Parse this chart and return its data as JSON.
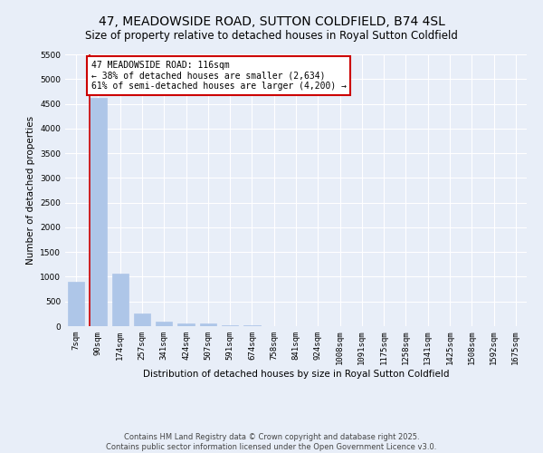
{
  "title": "47, MEADOWSIDE ROAD, SUTTON COLDFIELD, B74 4SL",
  "subtitle": "Size of property relative to detached houses in Royal Sutton Coldfield",
  "xlabel": "Distribution of detached houses by size in Royal Sutton Coldfield",
  "ylabel": "Number of detached properties",
  "bin_labels": [
    "7sqm",
    "90sqm",
    "174sqm",
    "257sqm",
    "341sqm",
    "424sqm",
    "507sqm",
    "591sqm",
    "674sqm",
    "758sqm",
    "841sqm",
    "924sqm",
    "1008sqm",
    "1091sqm",
    "1175sqm",
    "1258sqm",
    "1341sqm",
    "1425sqm",
    "1508sqm",
    "1592sqm",
    "1675sqm"
  ],
  "bar_heights": [
    900,
    4620,
    1070,
    250,
    100,
    55,
    50,
    15,
    10,
    5,
    3,
    2,
    1,
    1,
    0,
    0,
    0,
    0,
    0,
    0,
    0
  ],
  "bar_color": "#aec6e8",
  "bar_edge_color": "#aec6e8",
  "annotation_text": "47 MEADOWSIDE ROAD: 116sqm\n← 38% of detached houses are smaller (2,634)\n61% of semi-detached houses are larger (4,200) →",
  "annotation_box_color": "#ffffff",
  "annotation_box_edge_color": "#cc0000",
  "vline_color": "#cc0000",
  "ylim": [
    0,
    5500
  ],
  "yticks": [
    0,
    500,
    1000,
    1500,
    2000,
    2500,
    3000,
    3500,
    4000,
    4500,
    5000,
    5500
  ],
  "bg_color": "#e8eef8",
  "plot_bg_color": "#e8eef8",
  "footer": "Contains HM Land Registry data © Crown copyright and database right 2025.\nContains public sector information licensed under the Open Government Licence v3.0.",
  "title_fontsize": 10,
  "subtitle_fontsize": 8.5,
  "axis_label_fontsize": 7.5,
  "tick_fontsize": 6.5,
  "annotation_fontsize": 7,
  "footer_fontsize": 6
}
